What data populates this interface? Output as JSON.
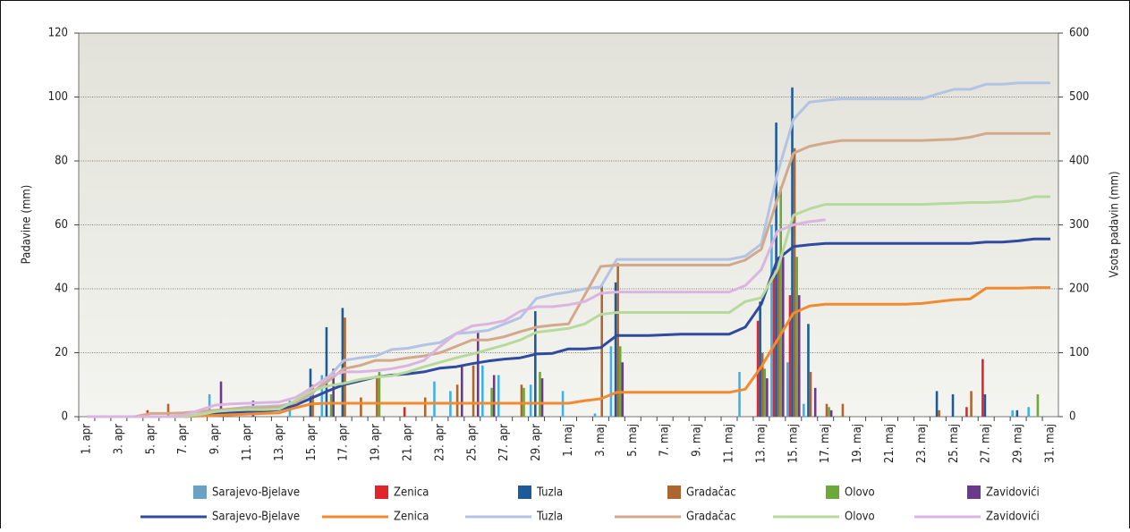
{
  "chart_data": {
    "type": "bar",
    "y_label": "Padavine (mm)",
    "y2_label": "Vsota padavin (mm)",
    "categories": [
      "1. apr",
      null,
      "3. apr",
      null,
      "5. apr",
      null,
      "7. apr",
      null,
      "9. apr",
      null,
      "11. apr",
      null,
      "13. apr",
      null,
      "15. apr",
      null,
      "17. apr",
      null,
      "19. apr",
      null,
      "21. apr",
      null,
      "23. apr",
      null,
      "25. apr",
      null,
      "27. apr",
      null,
      "29. apr",
      null,
      "1. maj",
      null,
      "3. maj",
      null,
      "5. maj",
      null,
      "7. maj",
      null,
      "9. maj",
      null,
      "11. maj",
      null,
      "13. maj",
      null,
      "15. maj",
      null,
      "17. maj",
      null,
      "19. maj",
      null,
      "21. maj",
      null,
      "23. maj",
      null,
      "25. maj",
      null,
      "27. maj",
      null,
      "29. maj",
      null,
      "31. maj"
    ],
    "ylim": [
      0,
      120
    ],
    "yticks": [
      0,
      20,
      40,
      60,
      80,
      100,
      120
    ],
    "y2lim": [
      0,
      600
    ],
    "y2ticks": [
      0,
      100,
      200,
      300,
      400,
      500,
      600
    ],
    "grid": true,
    "series": [
      {
        "name": "Sarajevo-Bjelave",
        "type": "bar",
        "color": "#3fb0e6",
        "legend_color": "#6aa2c6",
        "values": [
          0,
          0,
          0,
          0,
          0,
          0,
          0,
          0,
          7,
          0,
          0,
          0,
          0,
          5,
          0,
          13,
          0,
          0,
          0,
          0,
          0,
          0,
          11,
          8,
          0,
          16,
          13,
          0,
          10,
          0,
          8,
          0,
          1,
          22,
          0,
          0,
          0,
          0,
          0,
          0,
          0,
          14,
          0,
          60,
          17,
          4,
          0,
          0,
          0,
          0,
          0,
          0,
          0,
          0,
          0,
          0,
          0,
          0,
          2,
          3,
          0
        ]
      },
      {
        "name": "Zenica",
        "type": "bar",
        "color": "#e0262c",
        "values": [
          0,
          0,
          0,
          0,
          2,
          0,
          0,
          0,
          0,
          0,
          0,
          0,
          0,
          0,
          0,
          0,
          0,
          0,
          0,
          0,
          3,
          0,
          0,
          0,
          0,
          0,
          0,
          0,
          0,
          0,
          0,
          0,
          0,
          0,
          0,
          0,
          0,
          0,
          0,
          0,
          0,
          0,
          30,
          45,
          38,
          0,
          0,
          0,
          0,
          0,
          0,
          0,
          0,
          0,
          0,
          3,
          18,
          0,
          0,
          0,
          0
        ]
      },
      {
        "name": "Tuzla",
        "type": "bar",
        "color": "#1d5a98",
        "values": [
          0,
          0,
          0,
          0,
          0,
          0,
          0,
          0,
          0,
          0,
          0,
          0,
          0,
          0,
          15,
          28,
          34,
          0,
          0,
          0,
          0,
          0,
          0,
          0,
          0,
          0,
          0,
          0,
          33,
          0,
          0,
          0,
          0,
          42,
          0,
          0,
          0,
          0,
          0,
          0,
          0,
          0,
          36,
          92,
          103,
          29,
          0,
          0,
          0,
          0,
          0,
          0,
          0,
          8,
          7,
          0,
          7,
          0,
          2,
          0,
          0
        ]
      },
      {
        "name": "Gradačac",
        "type": "bar",
        "color": "#ad6630",
        "values": [
          0,
          0,
          0,
          0,
          0,
          4,
          0,
          0,
          0,
          0,
          0,
          0,
          0,
          0,
          10,
          0,
          31,
          6,
          12,
          0,
          0,
          6,
          0,
          10,
          16,
          0,
          0,
          10,
          0,
          0,
          0,
          0,
          41,
          48,
          0,
          0,
          0,
          0,
          0,
          0,
          0,
          0,
          20,
          50,
          84,
          14,
          4,
          4,
          0,
          0,
          0,
          0,
          0,
          2,
          0,
          8,
          0,
          0,
          0,
          0,
          0
        ]
      },
      {
        "name": "Olovo",
        "type": "bar",
        "color": "#6da83a",
        "values": [
          0,
          0,
          0,
          0,
          0,
          0,
          0,
          0,
          0,
          0,
          0,
          0,
          0,
          0,
          0,
          7,
          0,
          0,
          14,
          0,
          0,
          0,
          0,
          0,
          0,
          9,
          0,
          9,
          14,
          0,
          0,
          0,
          0,
          22,
          0,
          0,
          0,
          0,
          0,
          0,
          0,
          0,
          15,
          72,
          50,
          0,
          3,
          0,
          0,
          0,
          0,
          0,
          0,
          0,
          0,
          0,
          0,
          0,
          0,
          7,
          0
        ]
      },
      {
        "name": "Zavidovići",
        "type": "bar",
        "color": "#6b3a8c",
        "values": [
          0,
          0,
          0,
          0,
          0,
          0,
          0,
          0,
          11,
          0,
          5,
          0,
          0,
          0,
          0,
          15,
          0,
          0,
          0,
          0,
          0,
          0,
          0,
          16,
          27,
          13,
          0,
          0,
          12,
          0,
          0,
          0,
          0,
          17,
          0,
          0,
          0,
          0,
          0,
          0,
          0,
          0,
          12,
          50,
          38,
          9,
          2,
          0,
          0,
          0,
          0,
          0,
          0,
          0,
          0,
          0,
          0,
          0,
          0,
          0,
          0
        ]
      },
      {
        "name": "Sarajevo-Bjelave",
        "type": "line",
        "axis": "y2",
        "color": "#2f4a9e",
        "values": [
          0,
          0,
          0,
          0,
          0,
          0,
          0,
          2,
          4,
          6,
          8,
          9,
          11,
          18,
          29,
          40,
          50,
          56,
          62,
          65,
          67,
          70,
          76,
          78,
          83,
          87,
          90,
          92,
          98,
          99,
          106,
          106,
          108,
          127,
          127,
          127,
          128,
          129,
          129,
          129,
          129,
          140,
          176,
          246,
          266,
          269,
          271,
          271,
          271,
          271,
          271,
          271,
          271,
          271,
          271,
          271,
          273,
          273,
          275,
          278,
          278
        ]
      },
      {
        "name": "Zenica",
        "type": "line",
        "axis": "y2",
        "color": "#f28a30",
        "values": [
          0,
          0,
          0,
          0,
          0,
          0,
          0,
          1,
          2,
          3,
          4,
          5,
          6,
          14,
          20,
          21,
          21,
          21,
          21,
          21,
          21,
          21,
          21,
          21,
          21,
          21,
          21,
          21,
          21,
          21,
          21,
          25,
          28,
          38,
          38,
          38,
          38,
          38,
          38,
          38,
          38,
          43,
          78,
          120,
          162,
          173,
          176,
          176,
          176,
          176,
          176,
          176,
          177,
          180,
          183,
          184,
          201,
          201,
          201,
          202,
          202
        ]
      },
      {
        "name": "Tuzla",
        "type": "line",
        "axis": "y2",
        "color": "#b3c3e4",
        "values": [
          0,
          0,
          0,
          0,
          0,
          0,
          0,
          3,
          8,
          12,
          15,
          16,
          17,
          22,
          35,
          60,
          88,
          92,
          95,
          105,
          107,
          112,
          116,
          130,
          132,
          135,
          145,
          155,
          185,
          191,
          195,
          200,
          203,
          246,
          246,
          246,
          246,
          246,
          246,
          246,
          246,
          251,
          270,
          380,
          465,
          492,
          495,
          497,
          497,
          497,
          497,
          497,
          497,
          505,
          512,
          512,
          520,
          520,
          522,
          522,
          522
        ]
      },
      {
        "name": "Gradačac",
        "type": "line",
        "axis": "y2",
        "color": "#d3a98c",
        "values": [
          0,
          0,
          0,
          0,
          5,
          5,
          6,
          8,
          10,
          12,
          13,
          14,
          15,
          22,
          38,
          55,
          75,
          80,
          88,
          88,
          92,
          95,
          100,
          110,
          120,
          120,
          125,
          133,
          140,
          143,
          145,
          190,
          235,
          237,
          237,
          237,
          237,
          237,
          237,
          237,
          237,
          245,
          262,
          340,
          412,
          423,
          428,
          432,
          432,
          432,
          432,
          432,
          432,
          433,
          434,
          437,
          443,
          443,
          443,
          443,
          443
        ]
      },
      {
        "name": "Olovo",
        "type": "line",
        "axis": "y2",
        "color": "#b8d99c",
        "values": [
          0,
          0,
          0,
          0,
          0,
          0,
          0,
          4,
          8,
          10,
          11,
          11,
          12,
          25,
          40,
          48,
          52,
          58,
          62,
          64,
          70,
          78,
          85,
          92,
          98,
          105,
          112,
          120,
          132,
          135,
          138,
          145,
          160,
          163,
          163,
          163,
          163,
          163,
          163,
          163,
          163,
          180,
          186,
          230,
          315,
          325,
          332,
          332,
          332,
          332,
          332,
          332,
          332,
          333,
          334,
          335,
          335,
          336,
          338,
          344,
          344
        ]
      },
      {
        "name": "Zavidovići",
        "type": "line",
        "axis": "y2",
        "color": "#dbb5e0",
        "values": [
          0,
          0,
          0,
          0,
          0,
          0,
          2,
          10,
          18,
          20,
          21,
          22,
          23,
          30,
          45,
          62,
          70,
          70,
          72,
          75,
          80,
          88,
          110,
          130,
          142,
          145,
          150,
          165,
          172,
          172,
          175,
          180,
          193,
          195,
          195,
          195,
          195,
          195,
          195,
          195,
          195,
          205,
          230,
          290,
          300,
          305,
          308,
          null,
          null,
          null,
          null,
          null,
          null,
          null,
          null,
          null,
          null,
          null,
          null,
          null,
          null
        ]
      }
    ]
  }
}
